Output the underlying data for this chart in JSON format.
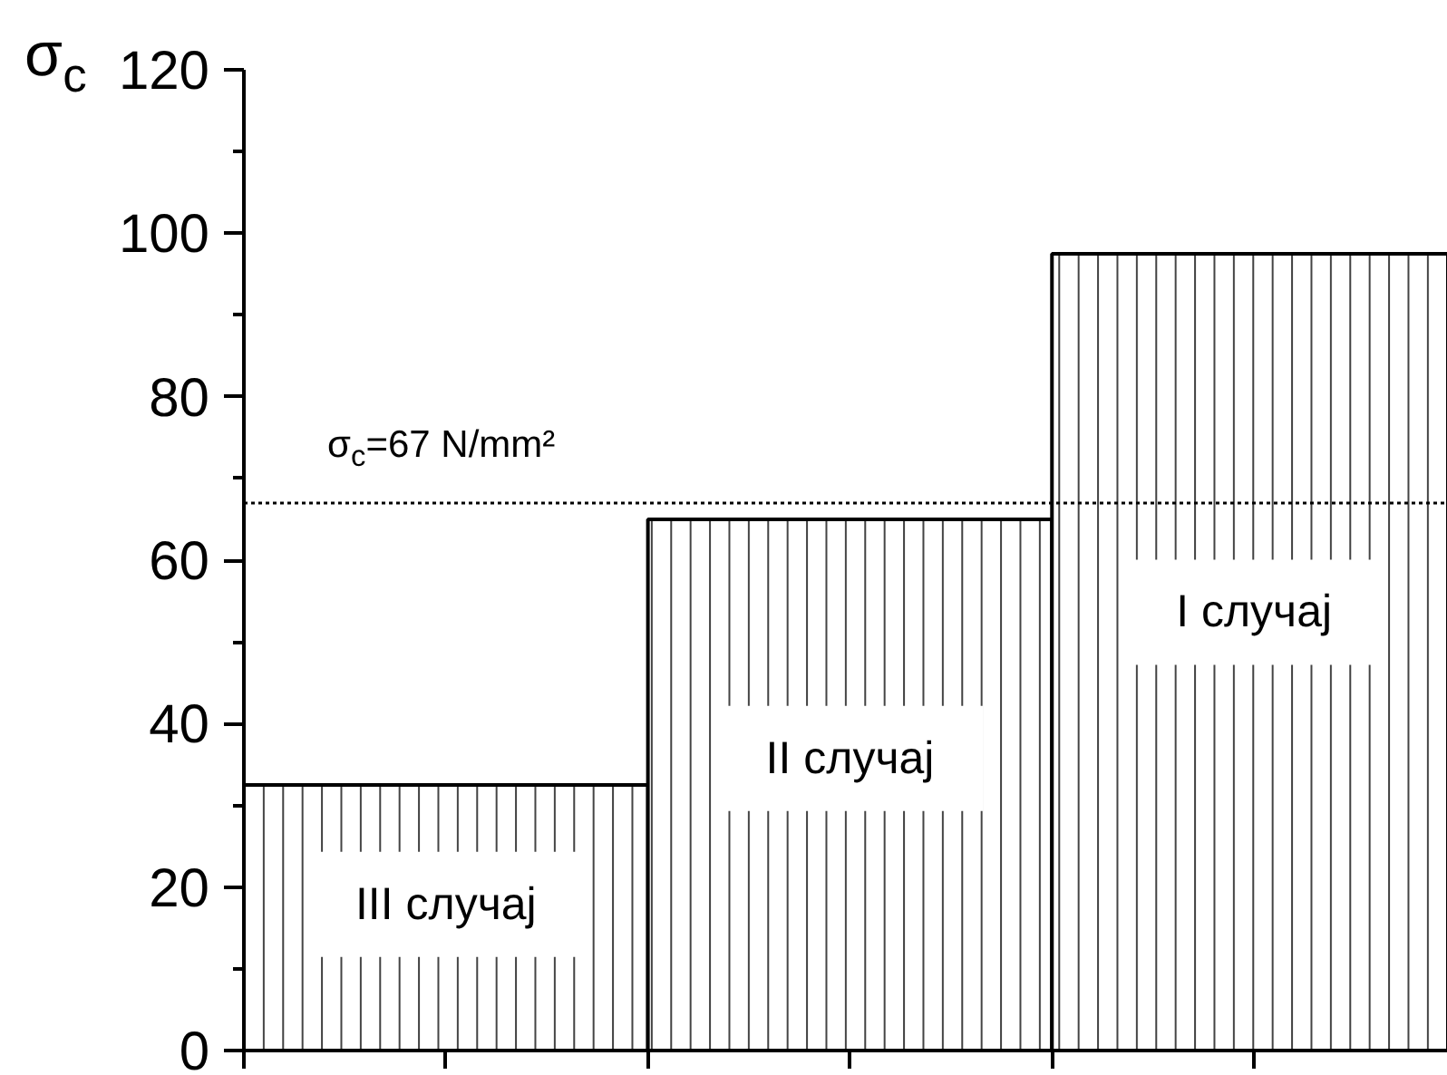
{
  "chart_data": {
    "type": "bar",
    "ylabel": "σ$_{c}$",
    "categories": [
      "III случај",
      "II случај",
      "I случај"
    ],
    "values": [
      32.5,
      65,
      97.5
    ],
    "color": "#000000",
    "ylim": [
      0,
      120
    ],
    "yticks": [
      0,
      {
        "value": 10,
        "label": null
      },
      20,
      {
        "value": 30,
        "label": null
      },
      40,
      {
        "value": 50,
        "label": null
      },
      60,
      {
        "value": 70,
        "label": null
      },
      80,
      {
        "value": 90,
        "label": null
      },
      100,
      {
        "value": 110,
        "label": null
      },
      120
    ],
    "ref_lines": [
      {
        "axis": "y",
        "value": 67,
        "label": "σ$_{c}$=67 N/mm²",
        "color": "#000000",
        "line_style": "dotted"
      }
    ],
    "tick_labels": "y"
  }
}
